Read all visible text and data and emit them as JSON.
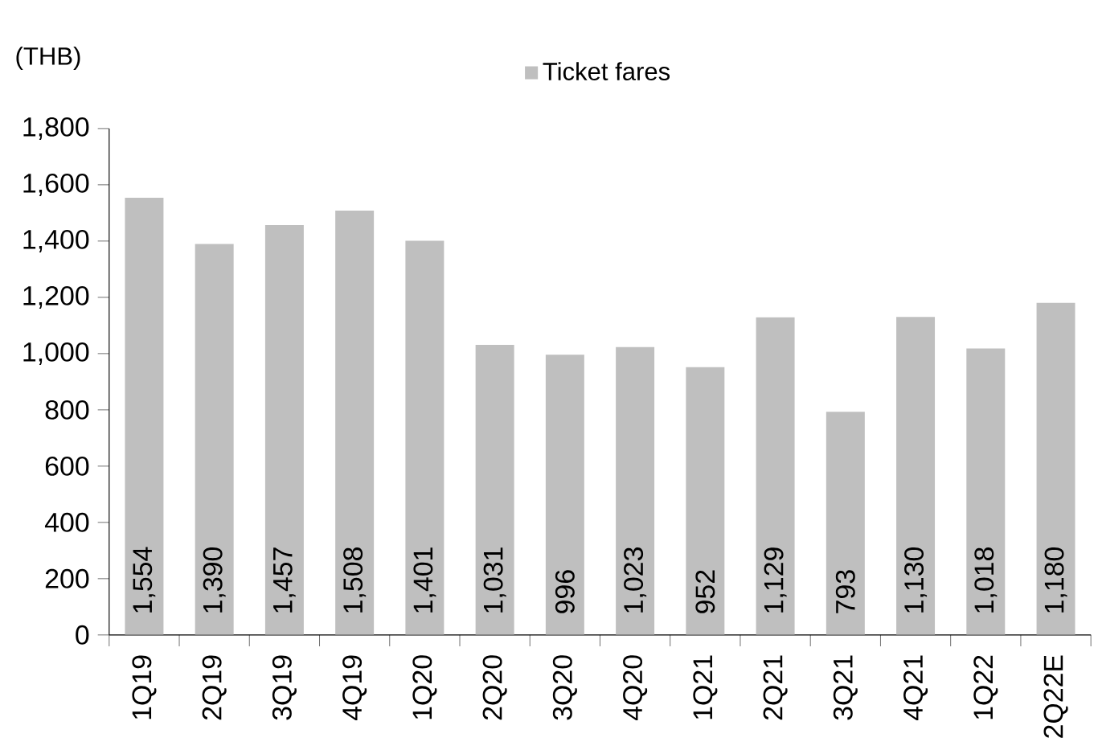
{
  "chart_data": {
    "type": "bar",
    "ylabel": "(THB)",
    "categories": [
      "1Q19",
      "2Q19",
      "3Q19",
      "4Q19",
      "1Q20",
      "2Q20",
      "3Q20",
      "4Q20",
      "1Q21",
      "2Q21",
      "3Q21",
      "4Q21",
      "1Q22",
      "2Q22E"
    ],
    "series": [
      {
        "name": "Ticket fares",
        "color": "#bfbfbf",
        "values": [
          1554,
          1390,
          1457,
          1508,
          1401,
          1031,
          996,
          1023,
          952,
          1129,
          793,
          1130,
          1018,
          1180
        ],
        "value_labels": [
          "1,554",
          "1,390",
          "1,457",
          "1,508",
          "1,401",
          "1,031",
          "996",
          "1,023",
          "952",
          "1,129",
          "793",
          "1,130",
          "1,018",
          "1,180"
        ]
      }
    ],
    "ylim": [
      0,
      1800
    ],
    "yticks": [
      0,
      200,
      400,
      600,
      800,
      {
        "value": 1000,
        "label": "1,000"
      },
      {
        "value": 1200,
        "label": "1,200"
      },
      {
        "value": 1400,
        "label": "1,400"
      },
      {
        "value": 1600,
        "label": "1,600"
      },
      {
        "value": 1800,
        "label": "1,800"
      }
    ],
    "grid": false,
    "legend": "top"
  }
}
